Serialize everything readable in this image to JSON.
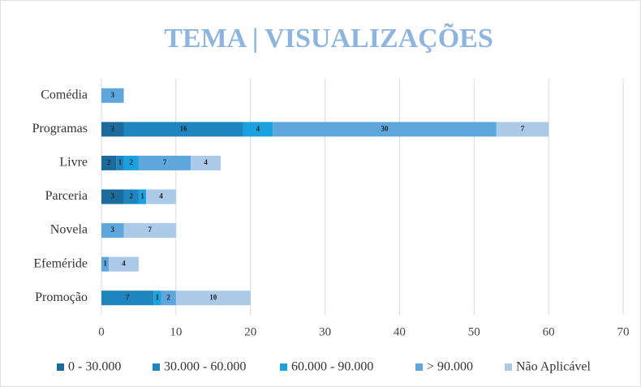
{
  "chart_data": {
    "type": "stacked-barh",
    "title": "TEMA | VISUALIZAÇÕES",
    "categories": [
      "Comédia",
      "Programas",
      "Livre",
      "Parceria",
      "Novela",
      "Efeméride",
      "Promoção"
    ],
    "series": [
      {
        "name": "0 - 30.000",
        "color": "#1b6c9c",
        "values": [
          null,
          3,
          2,
          3,
          null,
          null,
          null
        ]
      },
      {
        "name": "30.000 - 60.000",
        "color": "#1f85bf",
        "values": [
          null,
          16,
          1,
          2,
          null,
          null,
          7
        ]
      },
      {
        "name": "60.000 - 90.000",
        "color": "#1ba2de",
        "values": [
          null,
          4,
          2,
          1,
          null,
          null,
          1
        ]
      },
      {
        "name": "> 90.000",
        "color": "#5ea7dc",
        "values": [
          3,
          30,
          7,
          null,
          3,
          1,
          2
        ]
      },
      {
        "name": "Não Aplicável",
        "color": "#aacae8",
        "values": [
          null,
          7,
          4,
          4,
          7,
          4,
          10
        ]
      }
    ],
    "xlim": [
      0,
      70
    ],
    "xticks": [
      0,
      10,
      20,
      30,
      40,
      50,
      60,
      70
    ],
    "grid": true,
    "legend": "bottom"
  }
}
